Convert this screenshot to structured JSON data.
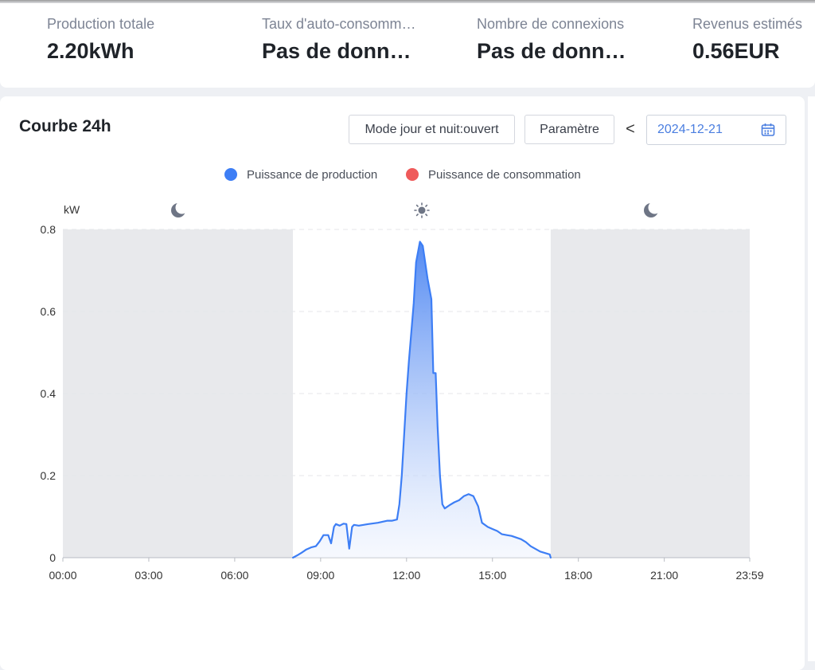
{
  "stats": [
    {
      "label": "Production totale",
      "value": "2.20kWh"
    },
    {
      "label": "Taux d'auto-consommation",
      "value": "Pas de données"
    },
    {
      "label": "Nombre de connexions",
      "value": "Pas de données"
    },
    {
      "label": "Revenus estimés",
      "value": "0.56EUR"
    }
  ],
  "chart_panel": {
    "title": "Courbe 24h",
    "mode_button": "Mode jour et nuit:ouvert",
    "param_button": "Paramètre",
    "prev_label": "<",
    "date": "2024-12-21",
    "icons": {
      "date_picker": "calendar-icon",
      "night": "moon-icon",
      "day": "sun-icon"
    }
  },
  "colors": {
    "production": "#3d7ef5",
    "consumption": "#ef5a5a",
    "night_band": "#e8e9ec"
  },
  "chart_data": {
    "type": "area",
    "unit": "kW",
    "ylim": [
      0,
      0.8
    ],
    "yticks": [
      "0",
      "0.2",
      "0.4",
      "0.6",
      "0.8"
    ],
    "xticks": [
      "00:00",
      "03:00",
      "06:00",
      "09:00",
      "12:00",
      "15:00",
      "18:00",
      "21:00",
      "23:59"
    ],
    "xlim_minutes": [
      0,
      1439
    ],
    "grid": "horizontal dashed",
    "legend_position": "top-center",
    "night_periods": [
      [
        "00:00",
        "08:02"
      ],
      [
        "17:02",
        "23:59"
      ]
    ],
    "series": [
      {
        "name": "Puissance de production",
        "color": "#3d7ef5",
        "points": [
          [
            "08:02",
            0
          ],
          [
            "08:10",
            0.005
          ],
          [
            "08:20",
            0.012
          ],
          [
            "08:30",
            0.02
          ],
          [
            "08:40",
            0.025
          ],
          [
            "08:50",
            0.028
          ],
          [
            "08:58",
            0.04
          ],
          [
            "09:06",
            0.055
          ],
          [
            "09:16",
            0.055
          ],
          [
            "09:22",
            0.035
          ],
          [
            "09:28",
            0.075
          ],
          [
            "09:32",
            0.082
          ],
          [
            "09:40",
            0.078
          ],
          [
            "09:48",
            0.083
          ],
          [
            "09:54",
            0.082
          ],
          [
            "10:00",
            0.022
          ],
          [
            "10:06",
            0.075
          ],
          [
            "10:10",
            0.08
          ],
          [
            "10:20",
            0.078
          ],
          [
            "10:40",
            0.082
          ],
          [
            "11:00",
            0.085
          ],
          [
            "11:20",
            0.09
          ],
          [
            "11:30",
            0.09
          ],
          [
            "11:40",
            0.093
          ],
          [
            "11:45",
            0.13
          ],
          [
            "11:50",
            0.2
          ],
          [
            "12:00",
            0.4
          ],
          [
            "12:05",
            0.48
          ],
          [
            "12:15",
            0.62
          ],
          [
            "12:20",
            0.72
          ],
          [
            "12:28",
            0.77
          ],
          [
            "12:34",
            0.76
          ],
          [
            "12:44",
            0.68
          ],
          [
            "12:52",
            0.63
          ],
          [
            "12:56",
            0.45
          ],
          [
            "13:01",
            0.45
          ],
          [
            "13:05",
            0.32
          ],
          [
            "13:10",
            0.2
          ],
          [
            "13:15",
            0.13
          ],
          [
            "13:20",
            0.12
          ],
          [
            "13:30",
            0.128
          ],
          [
            "13:40",
            0.135
          ],
          [
            "13:50",
            0.14
          ],
          [
            "14:00",
            0.15
          ],
          [
            "14:10",
            0.155
          ],
          [
            "14:20",
            0.15
          ],
          [
            "14:30",
            0.125
          ],
          [
            "14:38",
            0.085
          ],
          [
            "14:50",
            0.075
          ],
          [
            "15:00",
            0.07
          ],
          [
            "15:10",
            0.065
          ],
          [
            "15:20",
            0.057
          ],
          [
            "15:40",
            0.053
          ],
          [
            "16:00",
            0.045
          ],
          [
            "16:10",
            0.038
          ],
          [
            "16:20",
            0.028
          ],
          [
            "16:40",
            0.015
          ],
          [
            "17:00",
            0.008
          ],
          [
            "17:02",
            0.0
          ]
        ]
      },
      {
        "name": "Puissance de consommation",
        "color": "#ef5a5a",
        "points": []
      }
    ]
  }
}
